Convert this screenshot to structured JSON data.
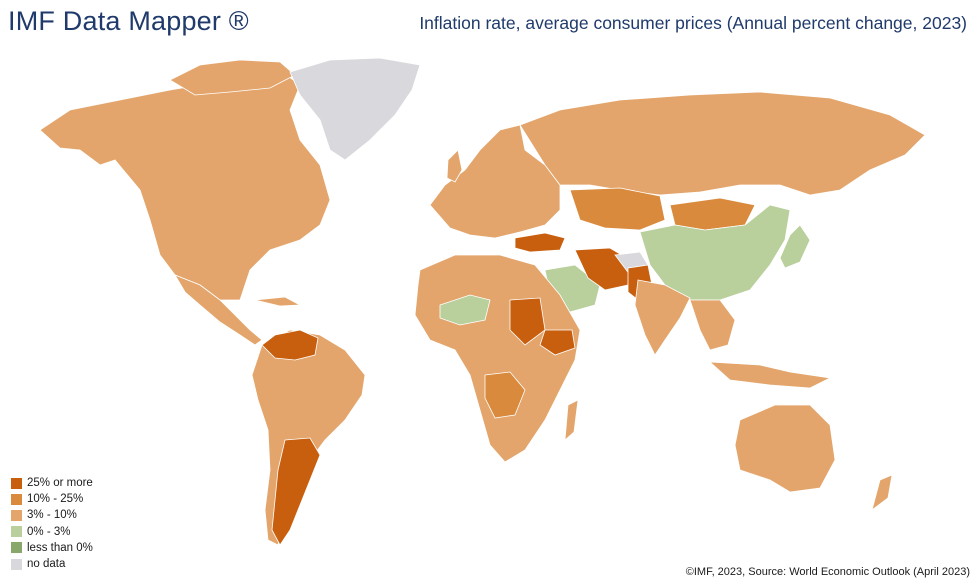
{
  "header": {
    "brand": "IMF Data Mapper ®",
    "title": "Inflation rate, average consumer prices (Annual percent change, 2023)"
  },
  "legend": {
    "items": [
      {
        "label": "25% or more",
        "color": "#c85f0f"
      },
      {
        "label": "10% - 25%",
        "color": "#d98a3d"
      },
      {
        "label": "3% - 10%",
        "color": "#e3a56b"
      },
      {
        "label": "0% - 3%",
        "color": "#b9cf9c"
      },
      {
        "label": "less than 0%",
        "color": "#88a86b"
      },
      {
        "label": "no data",
        "color": "#d9d9dd"
      }
    ]
  },
  "footer": {
    "source": "©IMF, 2023, Source: World Economic Outlook (April 2023)"
  },
  "map_regions": [
    {
      "name": "Greenland",
      "category": "no data"
    },
    {
      "name": "North America",
      "category": "3% - 10%"
    },
    {
      "name": "Argentina",
      "category": "25% or more"
    },
    {
      "name": "Venezuela",
      "category": "25% or more"
    },
    {
      "name": "Russia",
      "category": "3% - 10%"
    },
    {
      "name": "China",
      "category": "0% - 3%"
    },
    {
      "name": "Iran",
      "category": "25% or more"
    },
    {
      "name": "Turkey",
      "category": "25% or more"
    },
    {
      "name": "Sudan",
      "category": "25% or more"
    },
    {
      "name": "Ethiopia",
      "category": "25% or more"
    },
    {
      "name": "Saudi Arabia",
      "category": "0% - 3%"
    },
    {
      "name": "Australia",
      "category": "3% - 10%"
    }
  ]
}
